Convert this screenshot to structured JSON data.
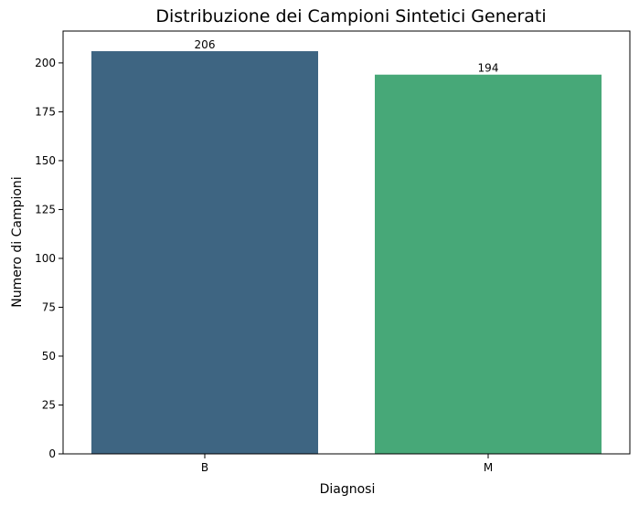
{
  "chart_data": {
    "type": "bar",
    "title": "Distribuzione dei Campioni Sintetici Generati",
    "xlabel": "Diagnosi",
    "ylabel": "Numero di Campioni",
    "categories": [
      "B",
      "M"
    ],
    "values": [
      206,
      194
    ],
    "data_labels": [
      "206",
      "194"
    ],
    "colors": [
      "#3e6582",
      "#47a878"
    ],
    "ylim": [
      0,
      216.3
    ],
    "yticks": [
      0,
      25,
      50,
      75,
      100,
      125,
      150,
      175,
      200
    ],
    "ytick_labels": [
      "0",
      "25",
      "50",
      "75",
      "100",
      "125",
      "150",
      "175",
      "200"
    ],
    "grid": false,
    "legend": "none"
  }
}
